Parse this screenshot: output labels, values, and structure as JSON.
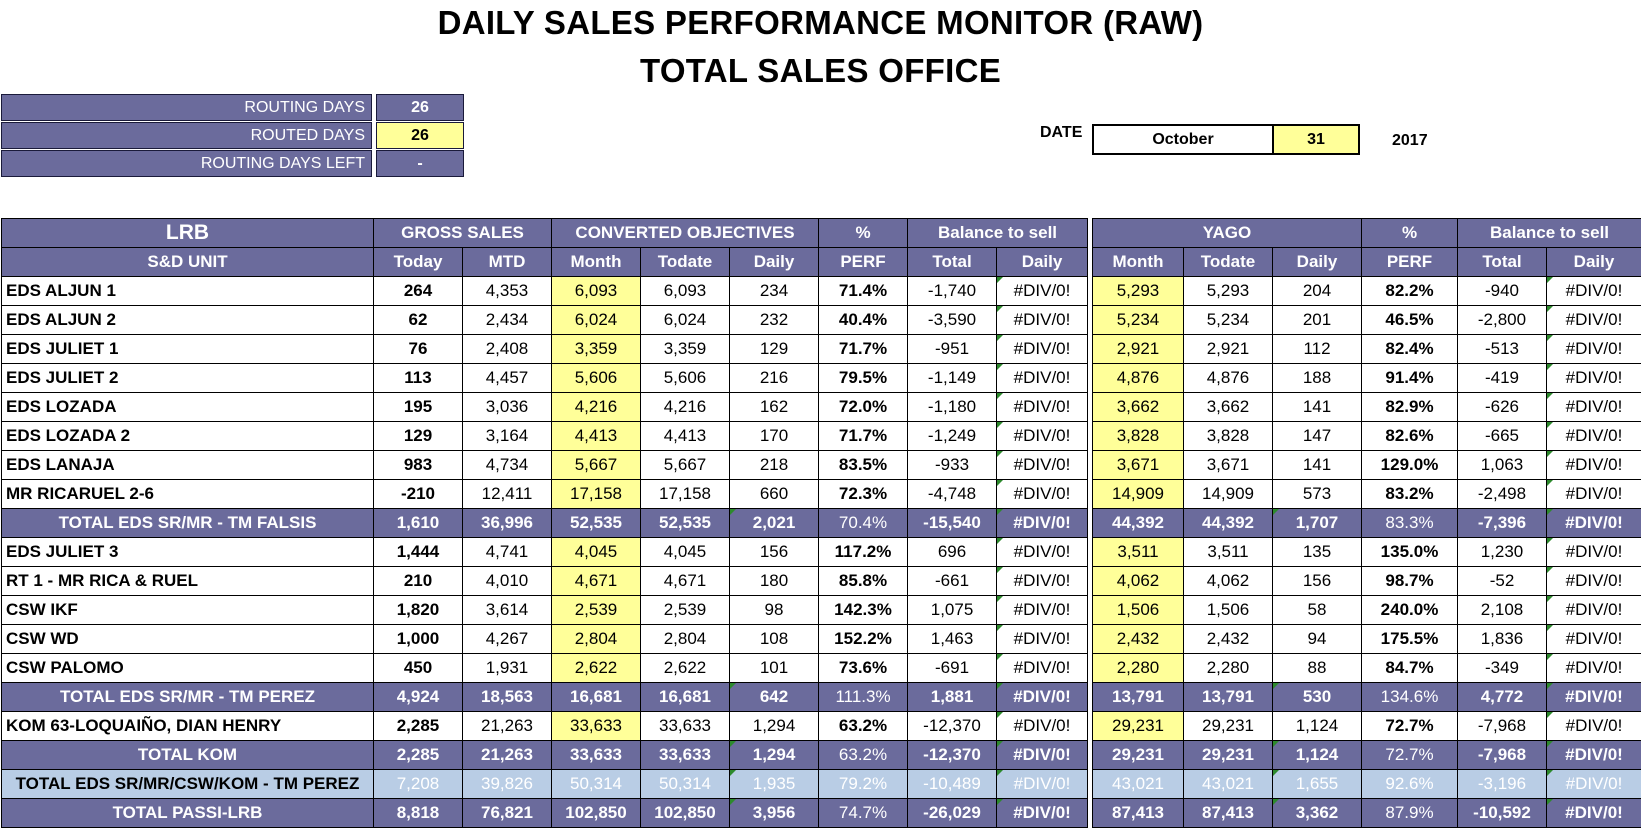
{
  "title": "DAILY SALES PERFORMANCE MONITOR (RAW)",
  "subtitle": "TOTAL SALES OFFICE",
  "routing": {
    "routing_days_label": "ROUTING DAYS",
    "routing_days": "26",
    "routed_days_label": "ROUTED DAYS",
    "routed_days": "26",
    "days_left_label": "ROUTING DAYS LEFT",
    "days_left": "-"
  },
  "date": {
    "label": "DATE",
    "month": "October",
    "day": "31",
    "year": "2017"
  },
  "headers": {
    "lrb": "LRB",
    "unit": "S&D UNIT",
    "gross_sales": "GROSS SALES",
    "converted": "CONVERTED OBJECTIVES",
    "pct": "%",
    "balance": "Balance to sell",
    "yago": "YAGO",
    "today": "Today",
    "mtd": "MTD",
    "month": "Month",
    "todate": "Todate",
    "daily": "Daily",
    "perf": "PERF",
    "total": "Total"
  },
  "rows": [
    {
      "name": "EDS ALJUN 1",
      "today": "264",
      "mtd": "4,353",
      "month": "6,093",
      "todate": "6,093",
      "daily": "234",
      "perf": "71.4%",
      "bal_total": "-1,740",
      "bal_daily": "#DIV/0!",
      "y_month": "5,293",
      "y_todate": "5,293",
      "y_daily": "204",
      "y_perf": "82.2%",
      "y_bal_total": "-940",
      "y_bal_daily": "#DIV/0!",
      "type": "row"
    },
    {
      "name": "EDS ALJUN 2",
      "today": "62",
      "mtd": "2,434",
      "month": "6,024",
      "todate": "6,024",
      "daily": "232",
      "perf": "40.4%",
      "bal_total": "-3,590",
      "bal_daily": "#DIV/0!",
      "y_month": "5,234",
      "y_todate": "5,234",
      "y_daily": "201",
      "y_perf": "46.5%",
      "y_bal_total": "-2,800",
      "y_bal_daily": "#DIV/0!",
      "type": "row"
    },
    {
      "name": "EDS JULIET 1",
      "today": "76",
      "mtd": "2,408",
      "month": "3,359",
      "todate": "3,359",
      "daily": "129",
      "perf": "71.7%",
      "bal_total": "-951",
      "bal_daily": "#DIV/0!",
      "y_month": "2,921",
      "y_todate": "2,921",
      "y_daily": "112",
      "y_perf": "82.4%",
      "y_bal_total": "-513",
      "y_bal_daily": "#DIV/0!",
      "type": "row"
    },
    {
      "name": "EDS JULIET 2",
      "today": "113",
      "mtd": "4,457",
      "month": "5,606",
      "todate": "5,606",
      "daily": "216",
      "perf": "79.5%",
      "bal_total": "-1,149",
      "bal_daily": "#DIV/0!",
      "y_month": "4,876",
      "y_todate": "4,876",
      "y_daily": "188",
      "y_perf": "91.4%",
      "y_bal_total": "-419",
      "y_bal_daily": "#DIV/0!",
      "type": "row"
    },
    {
      "name": "EDS LOZADA",
      "today": "195",
      "mtd": "3,036",
      "month": "4,216",
      "todate": "4,216",
      "daily": "162",
      "perf": "72.0%",
      "bal_total": "-1,180",
      "bal_daily": "#DIV/0!",
      "y_month": "3,662",
      "y_todate": "3,662",
      "y_daily": "141",
      "y_perf": "82.9%",
      "y_bal_total": "-626",
      "y_bal_daily": "#DIV/0!",
      "type": "row"
    },
    {
      "name": "EDS LOZADA 2",
      "today": "129",
      "mtd": "3,164",
      "month": "4,413",
      "todate": "4,413",
      "daily": "170",
      "perf": "71.7%",
      "bal_total": "-1,249",
      "bal_daily": "#DIV/0!",
      "y_month": "3,828",
      "y_todate": "3,828",
      "y_daily": "147",
      "y_perf": "82.6%",
      "y_bal_total": "-665",
      "y_bal_daily": "#DIV/0!",
      "type": "row"
    },
    {
      "name": "EDS LANAJA",
      "today": "983",
      "mtd": "4,734",
      "month": "5,667",
      "todate": "5,667",
      "daily": "218",
      "perf": "83.5%",
      "bal_total": "-933",
      "bal_daily": "#DIV/0!",
      "y_month": "3,671",
      "y_todate": "3,671",
      "y_daily": "141",
      "y_perf": "129.0%",
      "y_bal_total": "1,063",
      "y_bal_daily": "#DIV/0!",
      "type": "row"
    },
    {
      "name": "MR RICARUEL 2-6",
      "today": "-210",
      "mtd": "12,411",
      "month": "17,158",
      "todate": "17,158",
      "daily": "660",
      "perf": "72.3%",
      "bal_total": "-4,748",
      "bal_daily": "#DIV/0!",
      "y_month": "14,909",
      "y_todate": "14,909",
      "y_daily": "573",
      "y_perf": "83.2%",
      "y_bal_total": "-2,498",
      "y_bal_daily": "#DIV/0!",
      "type": "row"
    },
    {
      "name": "TOTAL EDS SR/MR - TM FALSIS",
      "today": "1,610",
      "mtd": "36,996",
      "month": "52,535",
      "todate": "52,535",
      "daily": "2,021",
      "perf": "70.4%",
      "bal_total": "-15,540",
      "bal_daily": "#DIV/0!",
      "y_month": "44,392",
      "y_todate": "44,392",
      "y_daily": "1,707",
      "y_perf": "83.3%",
      "y_bal_total": "-7,396",
      "y_bal_daily": "#DIV/0!",
      "type": "total"
    },
    {
      "name": "EDS JULIET 3",
      "today": "1,444",
      "mtd": "4,741",
      "month": "4,045",
      "todate": "4,045",
      "daily": "156",
      "perf": "117.2%",
      "bal_total": "696",
      "bal_daily": "#DIV/0!",
      "y_month": "3,511",
      "y_todate": "3,511",
      "y_daily": "135",
      "y_perf": "135.0%",
      "y_bal_total": "1,230",
      "y_bal_daily": "#DIV/0!",
      "type": "row"
    },
    {
      "name": "RT 1 - MR RICA & RUEL",
      "today": "210",
      "mtd": "4,010",
      "month": "4,671",
      "todate": "4,671",
      "daily": "180",
      "perf": "85.8%",
      "bal_total": "-661",
      "bal_daily": "#DIV/0!",
      "y_month": "4,062",
      "y_todate": "4,062",
      "y_daily": "156",
      "y_perf": "98.7%",
      "y_bal_total": "-52",
      "y_bal_daily": "#DIV/0!",
      "type": "row"
    },
    {
      "name": "CSW IKF",
      "today": "1,820",
      "mtd": "3,614",
      "month": "2,539",
      "todate": "2,539",
      "daily": "98",
      "perf": "142.3%",
      "bal_total": "1,075",
      "bal_daily": "#DIV/0!",
      "y_month": "1,506",
      "y_todate": "1,506",
      "y_daily": "58",
      "y_perf": "240.0%",
      "y_bal_total": "2,108",
      "y_bal_daily": "#DIV/0!",
      "type": "row"
    },
    {
      "name": "CSW WD",
      "today": "1,000",
      "mtd": "4,267",
      "month": "2,804",
      "todate": "2,804",
      "daily": "108",
      "perf": "152.2%",
      "bal_total": "1,463",
      "bal_daily": "#DIV/0!",
      "y_month": "2,432",
      "y_todate": "2,432",
      "y_daily": "94",
      "y_perf": "175.5%",
      "y_bal_total": "1,836",
      "y_bal_daily": "#DIV/0!",
      "type": "row"
    },
    {
      "name": "CSW PALOMO",
      "today": "450",
      "mtd": "1,931",
      "month": "2,622",
      "todate": "2,622",
      "daily": "101",
      "perf": "73.6%",
      "bal_total": "-691",
      "bal_daily": "#DIV/0!",
      "y_month": "2,280",
      "y_todate": "2,280",
      "y_daily": "88",
      "y_perf": "84.7%",
      "y_bal_total": "-349",
      "y_bal_daily": "#DIV/0!",
      "type": "row"
    },
    {
      "name": "TOTAL EDS SR/MR - TM PEREZ",
      "today": "4,924",
      "mtd": "18,563",
      "month": "16,681",
      "todate": "16,681",
      "daily": "642",
      "perf": "111.3%",
      "bal_total": "1,881",
      "bal_daily": "#DIV/0!",
      "y_month": "13,791",
      "y_todate": "13,791",
      "y_daily": "530",
      "y_perf": "134.6%",
      "y_bal_total": "4,772",
      "y_bal_daily": "#DIV/0!",
      "type": "total"
    },
    {
      "name": "KOM 63-LOQUAIÑO, DIAN HENRY",
      "today": "2,285",
      "mtd": "21,263",
      "month": "33,633",
      "todate": "33,633",
      "daily": "1,294",
      "perf": "63.2%",
      "bal_total": "-12,370",
      "bal_daily": "#DIV/0!",
      "y_month": "29,231",
      "y_todate": "29,231",
      "y_daily": "1,124",
      "y_perf": "72.7%",
      "y_bal_total": "-7,968",
      "y_bal_daily": "#DIV/0!",
      "type": "row"
    },
    {
      "name": "TOTAL KOM",
      "today": "2,285",
      "mtd": "21,263",
      "month": "33,633",
      "todate": "33,633",
      "daily": "1,294",
      "perf": "63.2%",
      "bal_total": "-12,370",
      "bal_daily": "#DIV/0!",
      "y_month": "29,231",
      "y_todate": "29,231",
      "y_daily": "1,124",
      "y_perf": "72.7%",
      "y_bal_total": "-7,968",
      "y_bal_daily": "#DIV/0!",
      "type": "total"
    },
    {
      "name": "TOTAL EDS SR/MR/CSW/KOM - TM PEREZ",
      "today": "7,208",
      "mtd": "39,826",
      "month": "50,314",
      "todate": "50,314",
      "daily": "1,935",
      "perf": "79.2%",
      "bal_total": "-10,489",
      "bal_daily": "#DIV/0!",
      "y_month": "43,021",
      "y_todate": "43,021",
      "y_daily": "1,655",
      "y_perf": "92.6%",
      "y_bal_total": "-3,196",
      "y_bal_daily": "#DIV/0!",
      "type": "light"
    },
    {
      "name": "TOTAL PASSI-LRB",
      "today": "8,818",
      "mtd": "76,821",
      "month": "102,850",
      "todate": "102,850",
      "daily": "3,956",
      "perf": "74.7%",
      "bal_total": "-26,029",
      "bal_daily": "#DIV/0!",
      "y_month": "87,413",
      "y_todate": "87,413",
      "y_daily": "3,362",
      "y_perf": "87.9%",
      "y_bal_total": "-10,592",
      "y_bal_daily": "#DIV/0!",
      "type": "total"
    }
  ]
}
